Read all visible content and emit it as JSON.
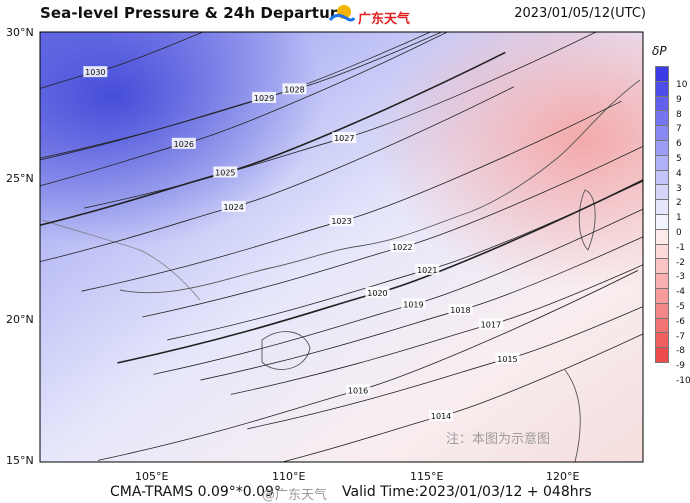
{
  "header": {
    "title": "Sea-level Pressure & 24h Departure",
    "logo_text": "广东天气",
    "datetime": "2023/01/05/12(UTC)"
  },
  "axes": {
    "lon_labels": [
      "105°E",
      "110°E",
      "115°E",
      "120°E"
    ],
    "lat_labels": [
      "30°N",
      "25°N",
      "20°N",
      "15°N"
    ],
    "extent": {
      "lon": [
        101.2,
        123.0
      ],
      "lat": [
        15,
        30
      ]
    }
  },
  "footer": {
    "model": "CMA-TRAMS 0.09°*0.09°",
    "watermark": "@广东天气",
    "valid": "Valid Time:2023/01/03/12 + 048hrs"
  },
  "note": "注：本图为示意图",
  "colorbar": {
    "label": "δP",
    "ticks": [
      "10",
      "9",
      "8",
      "7",
      "6",
      "5",
      "4",
      "3",
      "2",
      "1",
      "0",
      "-1",
      "-2",
      "-3",
      "-4",
      "-5",
      "-6",
      "-7",
      "-8",
      "-9",
      "-10"
    ],
    "colors": [
      "#3a3ae6",
      "#4d4dea",
      "#6161ee",
      "#7575f0",
      "#8989f3",
      "#9d9df5",
      "#b1b1f7",
      "#c4c4f9",
      "#d5d5fb",
      "#e6e6fd",
      "#f3f3fe",
      "#feeaea",
      "#fcd8d8",
      "#fac4c4",
      "#f8b0b0",
      "#f69c9c",
      "#f48888",
      "#f27373",
      "#f05f5f",
      "#ee4b4b"
    ]
  },
  "isobars": [
    {
      "label": "1030",
      "lon": 103.2,
      "lat": 28.6
    },
    {
      "label": "1029",
      "lon": 109.3,
      "lat": 27.7
    },
    {
      "label": "1028",
      "lon": 110.4,
      "lat": 28.0
    },
    {
      "label": "1027",
      "lon": 112.2,
      "lat": 26.3
    },
    {
      "label": "1026",
      "lon": 106.4,
      "lat": 26.1
    },
    {
      "label": "1025",
      "lon": 107.9,
      "lat": 25.1
    },
    {
      "label": "1024",
      "lon": 108.2,
      "lat": 23.9
    },
    {
      "label": "1023",
      "lon": 112.1,
      "lat": 23.4
    },
    {
      "label": "1022",
      "lon": 114.3,
      "lat": 22.5
    },
    {
      "label": "1021",
      "lon": 115.2,
      "lat": 21.7
    },
    {
      "label": "1020",
      "lon": 113.4,
      "lat": 20.9
    },
    {
      "label": "1019",
      "lon": 114.7,
      "lat": 20.5
    },
    {
      "label": "1018",
      "lon": 116.4,
      "lat": 20.3
    },
    {
      "label": "1017",
      "lon": 117.5,
      "lat": 19.8
    },
    {
      "label": "1016",
      "lon": 112.7,
      "lat": 17.5
    },
    {
      "label": "1015",
      "lon": 118.1,
      "lat": 18.6
    },
    {
      "label": "1014",
      "lon": 115.7,
      "lat": 16.6
    }
  ]
}
